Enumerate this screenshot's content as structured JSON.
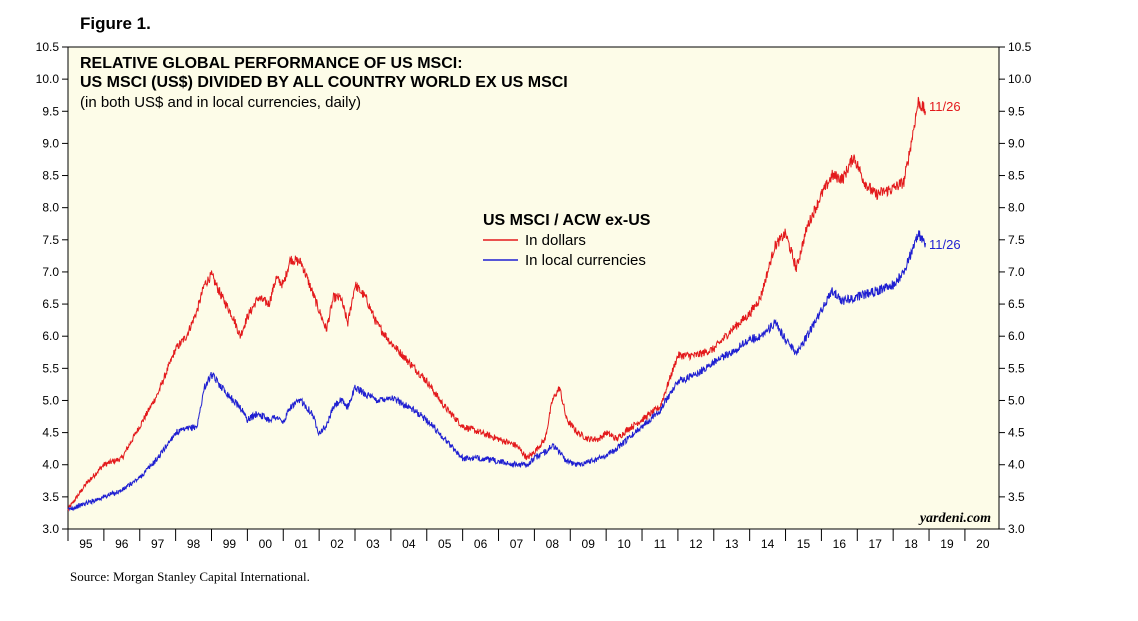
{
  "figure_label": "Figure 1.",
  "source": "Source: Morgan Stanley Capital International.",
  "watermark": "yardeni.com",
  "colors": {
    "background": "#fdfce8",
    "dollars": "#e31a1c",
    "local": "#1f1fd1",
    "axis": "#000000"
  },
  "chart_data": {
    "type": "line",
    "title": "RELATIVE GLOBAL PERFORMANCE OF US MSCI:",
    "title_line2": "US MSCI (US$) DIVIDED BY ALL COUNTRY WORLD EX US MSCI",
    "subtitle": "(in both US$ and in local currencies, daily)",
    "legend_title": "US MSCI / ACW ex-US",
    "grid": false,
    "legend_position": "top-center",
    "xlim": [
      1995,
      2020.95
    ],
    "ylim": [
      3.0,
      10.5
    ],
    "yticks": [
      "3.0",
      "3.5",
      "4.0",
      "4.5",
      "5.0",
      "5.5",
      "6.0",
      "6.5",
      "7.0",
      "7.5",
      "8.0",
      "8.5",
      "9.0",
      "9.5",
      "10.0",
      "10.5"
    ],
    "xtick_labels": [
      "95",
      "96",
      "97",
      "98",
      "99",
      "00",
      "01",
      "02",
      "03",
      "04",
      "05",
      "06",
      "07",
      "08",
      "09",
      "10",
      "11",
      "12",
      "13",
      "14",
      "15",
      "16",
      "17",
      "18",
      "19",
      "20"
    ],
    "series": [
      {
        "name": "In dollars",
        "color": "#e31a1c",
        "end_label": "11/26",
        "x": [
          1995.0,
          1995.5,
          1996.0,
          1996.5,
          1997.0,
          1997.5,
          1998.0,
          1998.3,
          1998.6,
          1998.8,
          1999.0,
          1999.3,
          1999.6,
          1999.8,
          2000.0,
          2000.3,
          2000.6,
          2000.8,
          2001.0,
          2001.2,
          2001.5,
          2001.8,
          2002.0,
          2002.2,
          2002.4,
          2002.6,
          2002.8,
          2003.0,
          2003.3,
          2003.6,
          2004.0,
          2004.5,
          2005.0,
          2005.5,
          2006.0,
          2006.5,
          2007.0,
          2007.5,
          2007.8,
          2008.0,
          2008.3,
          2008.5,
          2008.7,
          2008.9,
          2009.2,
          2009.5,
          2009.8,
          2010.0,
          2010.3,
          2010.6,
          2011.0,
          2011.5,
          2012.0,
          2012.5,
          2013.0,
          2013.5,
          2014.0,
          2014.3,
          2014.7,
          2015.0,
          2015.3,
          2015.6,
          2016.0,
          2016.3,
          2016.6,
          2016.9,
          2017.2,
          2017.5,
          2018.0,
          2018.3,
          2018.5,
          2018.7,
          2018.9
        ],
        "y": [
          3.3,
          3.7,
          4.0,
          4.1,
          4.6,
          5.1,
          5.8,
          6.0,
          6.4,
          6.8,
          6.95,
          6.6,
          6.3,
          6.0,
          6.3,
          6.6,
          6.5,
          6.9,
          6.8,
          7.2,
          7.15,
          6.7,
          6.4,
          6.1,
          6.6,
          6.6,
          6.2,
          6.8,
          6.6,
          6.2,
          5.9,
          5.6,
          5.3,
          4.9,
          4.6,
          4.5,
          4.4,
          4.3,
          4.1,
          4.2,
          4.4,
          5.0,
          5.2,
          4.7,
          4.5,
          4.4,
          4.4,
          4.5,
          4.4,
          4.55,
          4.7,
          4.9,
          5.7,
          5.7,
          5.8,
          6.1,
          6.35,
          6.6,
          7.4,
          7.6,
          7.05,
          7.7,
          8.2,
          8.5,
          8.45,
          8.8,
          8.4,
          8.2,
          8.3,
          8.4,
          9.0,
          9.65,
          9.5
        ]
      },
      {
        "name": "In local currencies",
        "color": "#1f1fd1",
        "end_label": "11/26",
        "x": [
          1995.0,
          1995.5,
          1996.0,
          1996.5,
          1997.0,
          1997.5,
          1998.0,
          1998.3,
          1998.6,
          1998.8,
          1999.0,
          1999.3,
          1999.6,
          1999.8,
          2000.0,
          2000.3,
          2000.6,
          2000.8,
          2001.0,
          2001.2,
          2001.5,
          2001.8,
          2002.0,
          2002.2,
          2002.4,
          2002.6,
          2002.8,
          2003.0,
          2003.3,
          2003.6,
          2004.0,
          2004.5,
          2005.0,
          2005.5,
          2006.0,
          2006.5,
          2007.0,
          2007.5,
          2007.8,
          2008.0,
          2008.3,
          2008.5,
          2008.7,
          2008.9,
          2009.2,
          2009.5,
          2009.8,
          2010.0,
          2010.3,
          2010.6,
          2011.0,
          2011.5,
          2012.0,
          2012.5,
          2013.0,
          2013.5,
          2014.0,
          2014.3,
          2014.7,
          2015.0,
          2015.3,
          2015.6,
          2016.0,
          2016.3,
          2016.6,
          2016.9,
          2017.2,
          2017.5,
          2018.0,
          2018.3,
          2018.5,
          2018.7,
          2018.9
        ],
        "y": [
          3.3,
          3.4,
          3.5,
          3.6,
          3.8,
          4.1,
          4.5,
          4.55,
          4.6,
          5.2,
          5.4,
          5.2,
          5.0,
          4.9,
          4.7,
          4.8,
          4.7,
          4.75,
          4.65,
          4.9,
          5.0,
          4.8,
          4.5,
          4.6,
          4.9,
          5.0,
          4.9,
          5.2,
          5.1,
          5.0,
          5.05,
          4.9,
          4.7,
          4.4,
          4.1,
          4.1,
          4.05,
          4.0,
          4.0,
          4.1,
          4.2,
          4.3,
          4.2,
          4.05,
          4.0,
          4.05,
          4.1,
          4.15,
          4.25,
          4.4,
          4.6,
          4.85,
          5.3,
          5.4,
          5.6,
          5.75,
          5.95,
          6.0,
          6.2,
          5.95,
          5.75,
          6.0,
          6.4,
          6.7,
          6.55,
          6.6,
          6.65,
          6.7,
          6.8,
          7.0,
          7.3,
          7.6,
          7.45
        ]
      }
    ]
  }
}
